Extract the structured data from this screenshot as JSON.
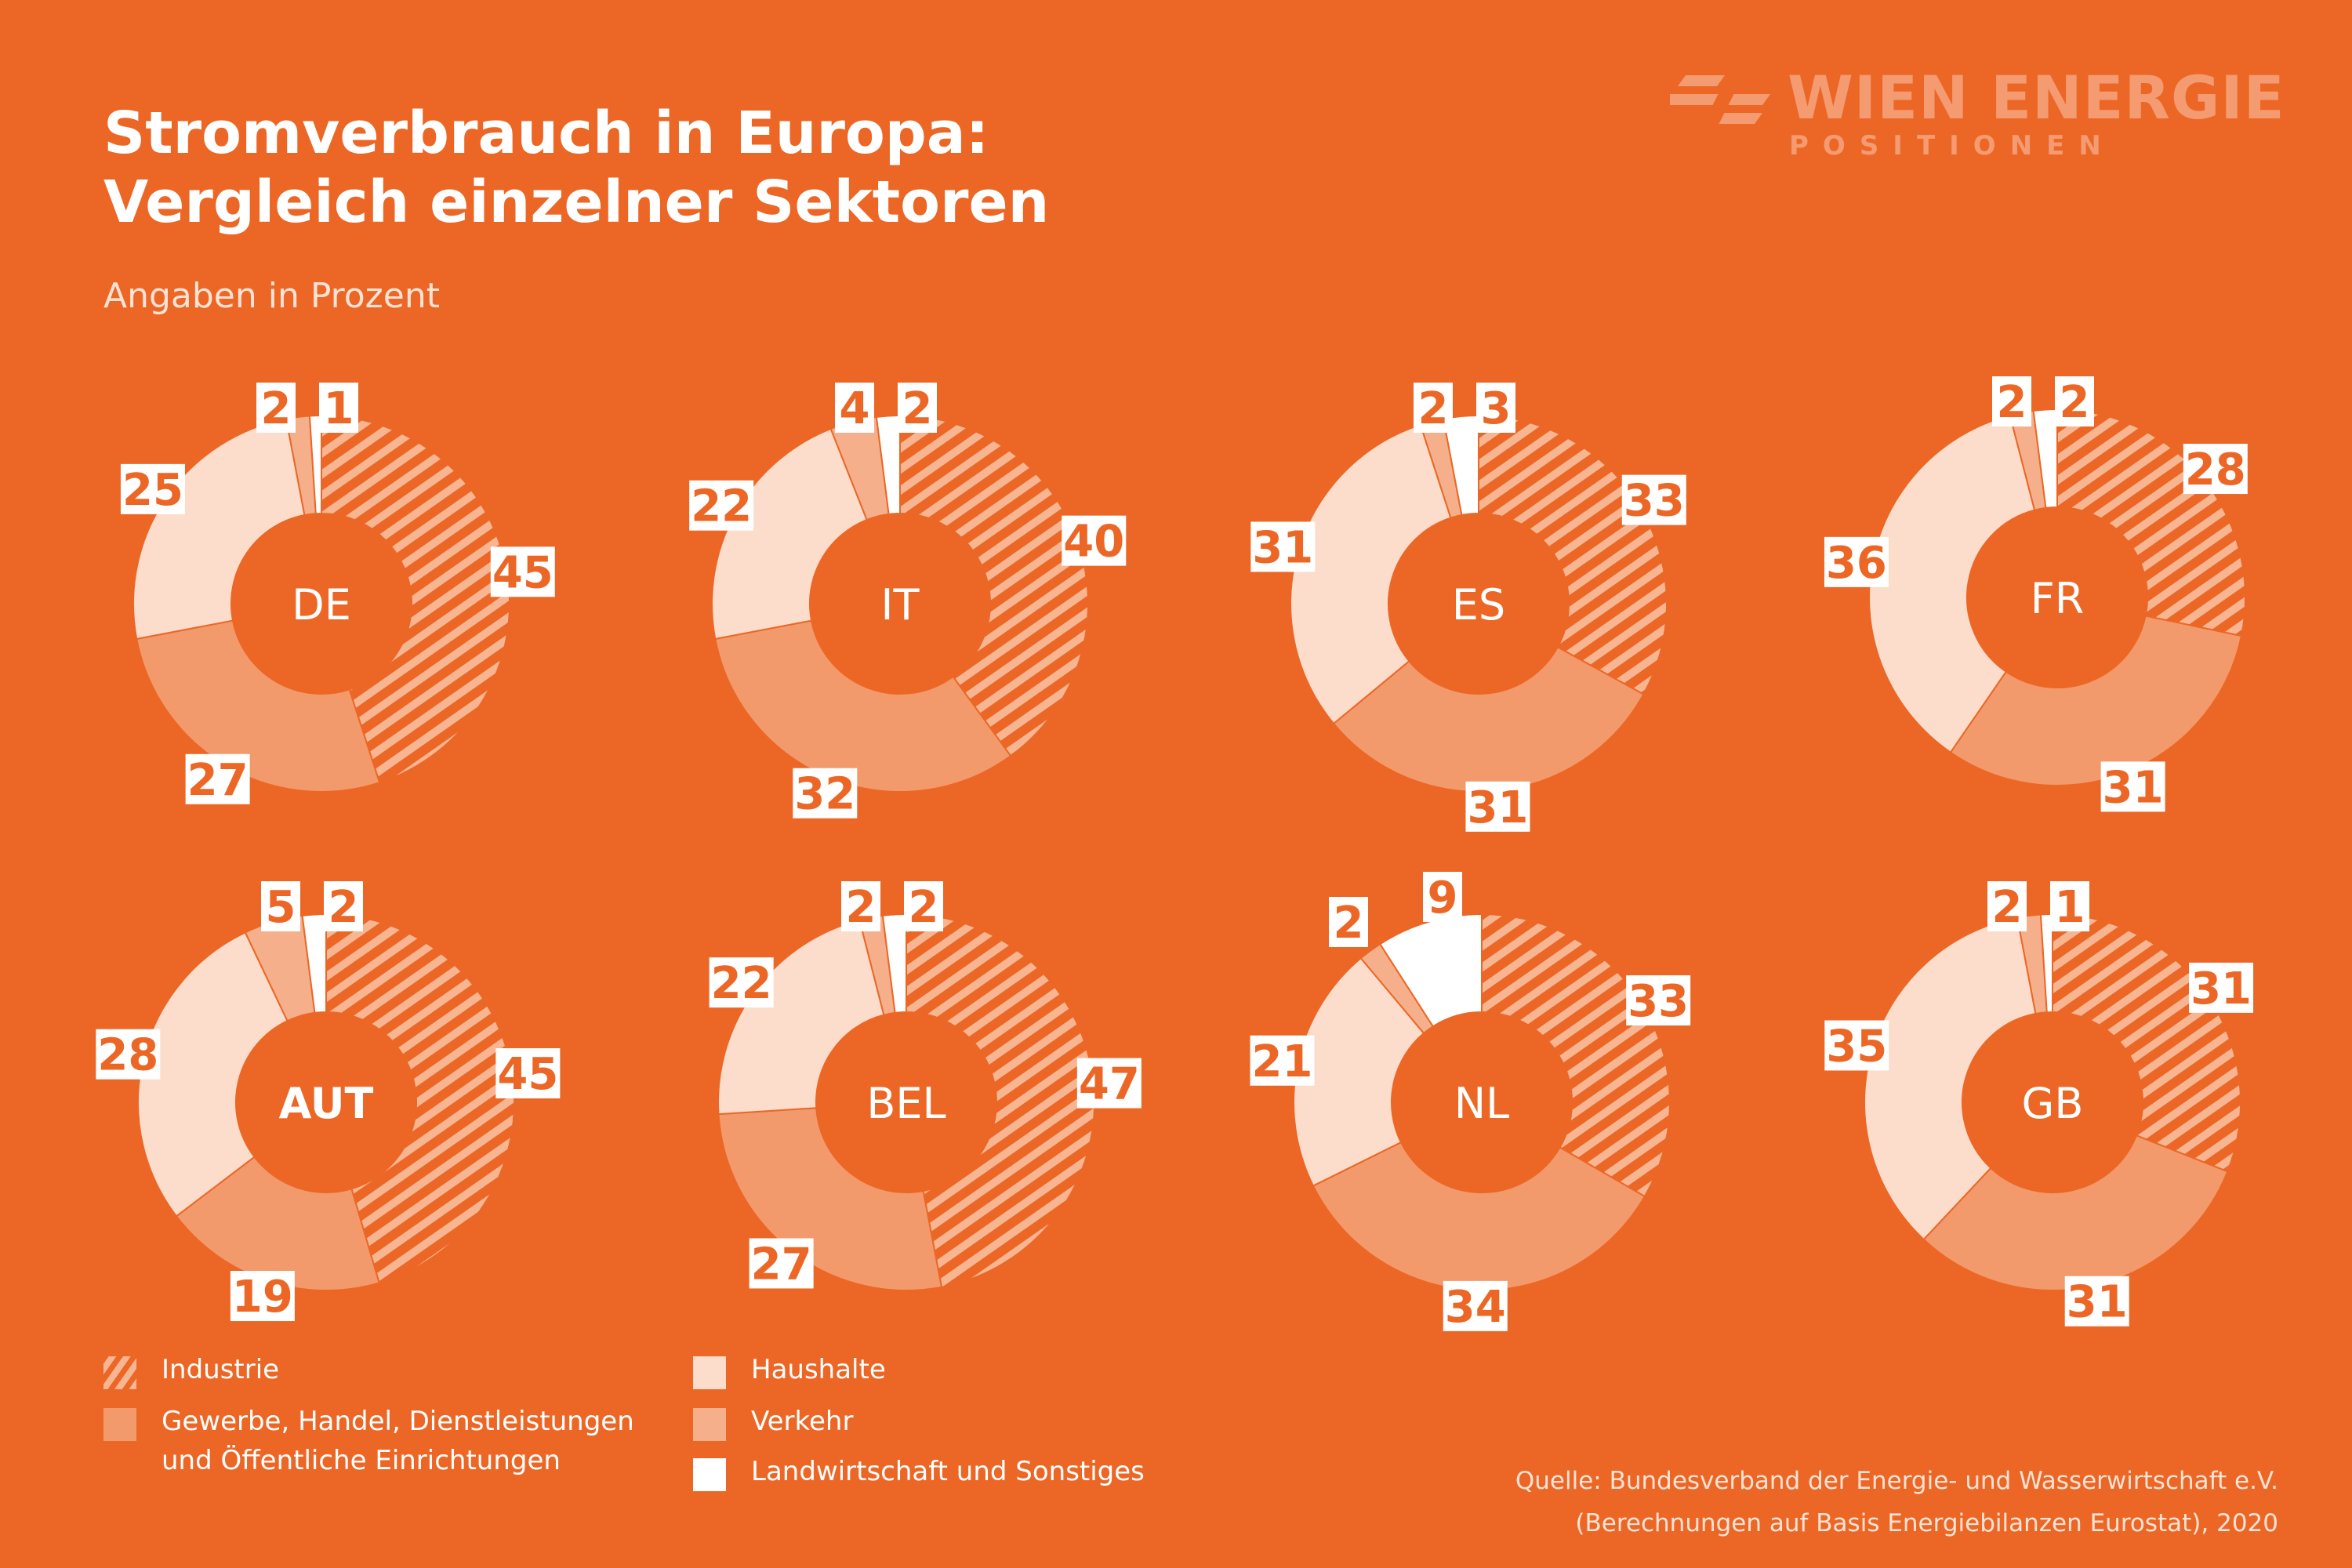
{
  "title_lines": [
    "Stromverbrauch in Europa:",
    "Vergleich einzelner Sektoren"
  ],
  "subtitle": "Angaben in Prozent",
  "logo": {
    "name": "WIEN ENERGIE",
    "sub": "POSITIONEN"
  },
  "colors": {
    "background": "#EC6726",
    "industrie_stripe": "#F7B591",
    "gewerbe": "#F39A6C",
    "haushalte": "#FCDCCB",
    "verkehr": "#F5AF8B",
    "landwirtschaft": "#FFFFFF",
    "label_text": "#EC6726"
  },
  "chart_data": [
    {
      "type": "pie",
      "country": "DE",
      "order": [
        "Industrie",
        "Gewerbe",
        "Haushalte",
        "Verkehr",
        "Landwirtschaft"
      ],
      "values": [
        45,
        27,
        25,
        2,
        1
      ]
    },
    {
      "type": "pie",
      "country": "IT",
      "order": [
        "Industrie",
        "Gewerbe",
        "Haushalte",
        "Verkehr",
        "Landwirtschaft"
      ],
      "values": [
        40,
        32,
        22,
        4,
        2
      ]
    },
    {
      "type": "pie",
      "country": "ES",
      "order": [
        "Industrie",
        "Gewerbe",
        "Haushalte",
        "Verkehr",
        "Landwirtschaft"
      ],
      "values": [
        33,
        31,
        31,
        2,
        3
      ]
    },
    {
      "type": "pie",
      "country": "FR",
      "order": [
        "Industrie",
        "Gewerbe",
        "Haushalte",
        "Verkehr",
        "Landwirtschaft"
      ],
      "values": [
        28,
        31,
        36,
        2,
        2
      ]
    },
    {
      "type": "pie",
      "country": "AUT",
      "order": [
        "Industrie",
        "Gewerbe",
        "Haushalte",
        "Verkehr",
        "Landwirtschaft"
      ],
      "values": [
        45,
        19,
        28,
        5,
        2
      ]
    },
    {
      "type": "pie",
      "country": "BEL",
      "order": [
        "Industrie",
        "Gewerbe",
        "Haushalte",
        "Verkehr",
        "Landwirtschaft"
      ],
      "values": [
        47,
        27,
        22,
        2,
        2
      ]
    },
    {
      "type": "pie",
      "country": "NL",
      "order": [
        "Industrie",
        "Gewerbe",
        "Haushalte",
        "Verkehr",
        "Landwirtschaft"
      ],
      "values": [
        33,
        34,
        21,
        2,
        9
      ]
    },
    {
      "type": "pie",
      "country": "GB",
      "order": [
        "Industrie",
        "Gewerbe",
        "Haushalte",
        "Verkehr",
        "Landwirtschaft"
      ],
      "values": [
        31,
        31,
        35,
        2,
        1
      ]
    }
  ],
  "legend": [
    {
      "key": "Industrie",
      "lines": [
        "Industrie"
      ]
    },
    {
      "key": "Gewerbe",
      "lines": [
        "Gewerbe, Handel, Dienstleistungen",
        "und Öffentliche Einrichtungen"
      ]
    },
    {
      "key": "Haushalte",
      "lines": [
        "Haushalte"
      ]
    },
    {
      "key": "Verkehr",
      "lines": [
        "Verkehr"
      ]
    },
    {
      "key": "Landwirtschaft",
      "lines": [
        "Landwirtschaft und Sonstiges"
      ]
    }
  ],
  "source_lines": [
    "Quelle: Bundesverband der Energie- und Wasserwirtschaft e.V.",
    "(Berechnungen auf Basis Energiebilanzen Eurostat), 2020"
  ]
}
